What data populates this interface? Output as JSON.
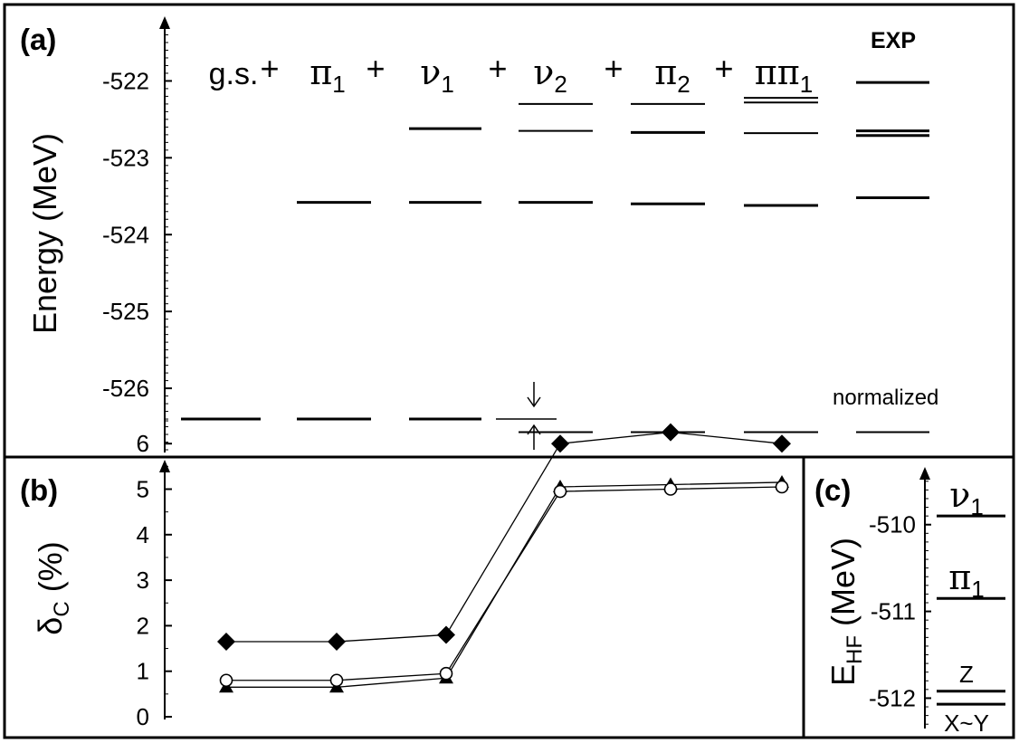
{
  "chart_data": [
    {
      "panel": "(a)",
      "type": "level-diagram",
      "ylabel": "Energy (MeV)",
      "ylim": [
        -526.8,
        -521.3
      ],
      "yticks": [
        "-522",
        "-523",
        "-524",
        "-525",
        "-526"
      ],
      "column_labels": [
        {
          "text": "g.s.",
          "sub": ""
        },
        {
          "text": "π",
          "sub": "1"
        },
        {
          "text": "ν",
          "sub": "1"
        },
        {
          "text": "ν",
          "sub": "2"
        },
        {
          "text": "π",
          "sub": "2"
        },
        {
          "text": "ππ",
          "sub": "1"
        },
        {
          "text": "EXP",
          "sub": ""
        }
      ],
      "plus_sign": "+",
      "columns": [
        {
          "levels": [
            -526.4
          ],
          "line_widths": [
            3
          ]
        },
        {
          "levels": [
            -523.58,
            -526.4
          ],
          "line_widths": [
            3,
            3
          ]
        },
        {
          "levels": [
            -522.62,
            -523.58,
            -526.4
          ],
          "line_widths": [
            3,
            3,
            3
          ]
        },
        {
          "levels": [
            -522.3,
            -522.65,
            -523.58,
            -526.57
          ],
          "line_widths": [
            2,
            2,
            3,
            2
          ]
        },
        {
          "levels": [
            -522.3,
            -522.67,
            -523.6,
            -526.57
          ],
          "line_widths": [
            2,
            3,
            3,
            2
          ]
        },
        {
          "levels": [
            -522.22,
            -522.28,
            -522.68,
            -523.62,
            -526.57
          ],
          "line_widths": [
            2,
            2,
            2,
            3,
            2
          ]
        },
        {
          "levels": [
            -522.02,
            -522.65,
            -522.71,
            -523.52,
            -526.57
          ],
          "line_widths": [
            3,
            3,
            3,
            3,
            2
          ]
        }
      ],
      "annotation": "normalized"
    },
    {
      "panel": "(b)",
      "type": "line",
      "ylabel_main": "δ",
      "ylabel_sub": "C",
      "ylabel_tail": " (%)",
      "ylim": [
        0,
        6.5
      ],
      "yticks": [
        "0",
        "1",
        "2",
        "3",
        "4",
        "5",
        "6"
      ],
      "series": [
        {
          "marker": "diamond",
          "values": [
            1.65,
            1.65,
            1.8,
            6.0,
            6.25,
            6.0
          ]
        },
        {
          "marker": "circle",
          "values": [
            0.8,
            0.8,
            0.95,
            4.95,
            5.0,
            5.05
          ]
        },
        {
          "marker": "triangle",
          "values": [
            0.65,
            0.65,
            0.85,
            5.05,
            5.1,
            5.15
          ]
        }
      ]
    },
    {
      "panel": "(c)",
      "type": "level-diagram",
      "ylabel_main": "E",
      "ylabel_sub": "HF",
      "ylabel_tail": " (MeV)",
      "ylim": [
        -512.35,
        -509.45
      ],
      "yticks": [
        "-510",
        "-511",
        "-512"
      ],
      "levels": [
        {
          "value": -509.9,
          "label_main": "ν",
          "label_sub": "1",
          "label_pos": "above"
        },
        {
          "value": -510.85,
          "label_main": "π",
          "label_sub": "1",
          "label_pos": "above"
        },
        {
          "value": -511.92,
          "label_main": "Z",
          "label_sub": "",
          "label_pos": "above"
        },
        {
          "value": -512.07,
          "label_main": "X~Y",
          "label_sub": "",
          "label_pos": "below"
        }
      ]
    }
  ]
}
